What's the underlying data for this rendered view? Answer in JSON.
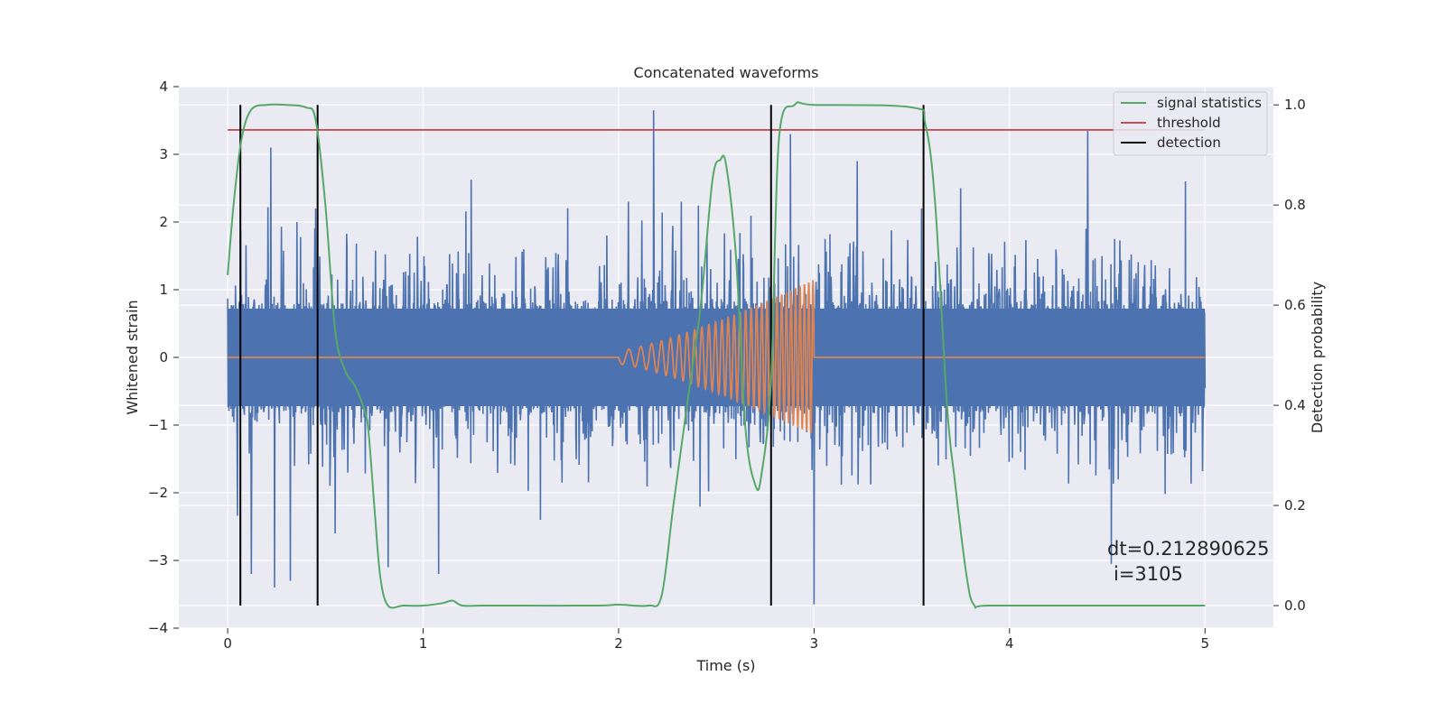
{
  "chart_data": {
    "type": "line",
    "title": "Concatenated waveforms",
    "xlabel": "Time (s)",
    "ylabel": "Whitened strain",
    "ylabel_right": "Detection probability",
    "xlim": [
      -0.25,
      5.35
    ],
    "ylim": [
      -4,
      4
    ],
    "ylim_right": [
      -0.045,
      1.0364
    ],
    "x_ticks": [
      "0",
      "1",
      "2",
      "3",
      "4",
      "5"
    ],
    "y_ticks": [
      "4",
      "3",
      "2",
      "1",
      "0",
      "−1",
      "−2",
      "−3",
      "−4"
    ],
    "y_ticks_right": [
      "1.0",
      "0.8",
      "0.6",
      "0.4",
      "0.2",
      "0.0"
    ],
    "grid": true,
    "legend_position": "top-right",
    "legend": [
      {
        "label": "signal statistics",
        "color": "#55a868"
      },
      {
        "label": "threshold",
        "color": "#c44e52"
      },
      {
        "label": "detection",
        "color": "#000000"
      }
    ],
    "annotation": {
      "line1": "dt=0.212890625",
      "line2": "i=3105"
    },
    "colors": {
      "strain": "#4c72b0",
      "injection": "#dd8452",
      "statistics": "#55a868",
      "threshold": "#c44e52",
      "detection": "#000000",
      "axes_background": "#eaeaf2",
      "grid": "#ffffff"
    },
    "series": [
      {
        "key": "strain",
        "axis": "left",
        "x_range": [
          0,
          5
        ],
        "envelope_core": 0.72,
        "peaks": [
          {
            "x": 0.12,
            "y": -3.2
          },
          {
            "x": 0.22,
            "y": 3.1
          },
          {
            "x": 0.24,
            "y": -3.4
          },
          {
            "x": 0.32,
            "y": -3.3
          },
          {
            "x": 0.45,
            "y": 2.2
          },
          {
            "x": 0.55,
            "y": -2.6
          },
          {
            "x": 0.82,
            "y": -3.1
          },
          {
            "x": 1.08,
            "y": -3.2
          },
          {
            "x": 1.6,
            "y": -2.4
          },
          {
            "x": 2.05,
            "y": 2.3
          },
          {
            "x": 2.18,
            "y": 3.65
          },
          {
            "x": 2.32,
            "y": 2.3
          },
          {
            "x": 2.88,
            "y": 3.3
          },
          {
            "x": 3.0,
            "y": -3.65
          },
          {
            "x": 3.22,
            "y": 2.9
          },
          {
            "x": 3.55,
            "y": 2.2
          },
          {
            "x": 3.75,
            "y": 2.5
          },
          {
            "x": 4.4,
            "y": 3.35
          },
          {
            "x": 4.52,
            "y": -3.05
          },
          {
            "x": 4.9,
            "y": 2.6
          }
        ]
      },
      {
        "key": "injection",
        "axis": "left",
        "x": [
          0,
          2.0,
          3.0,
          5.0
        ],
        "baseline": 0,
        "chirp": {
          "start": 2.0,
          "end": 3.0,
          "amplitude_start": 0.1,
          "amplitude_end": 1.15,
          "cycles": 30
        }
      },
      {
        "key": "statistics",
        "name": "signal statistics",
        "axis": "right",
        "x": [
          0.0,
          0.03,
          0.07,
          0.12,
          0.2,
          0.3,
          0.4,
          0.45,
          0.5,
          0.55,
          0.6,
          0.65,
          0.7,
          0.72,
          0.75,
          0.78,
          0.82,
          0.9,
          1.0,
          1.1,
          1.15,
          1.2,
          1.3,
          1.5,
          1.9,
          2.0,
          2.15,
          2.22,
          2.28,
          2.35,
          2.42,
          2.48,
          2.52,
          2.55,
          2.6,
          2.65,
          2.7,
          2.73,
          2.78,
          2.82,
          2.9,
          3.0,
          3.5,
          3.57,
          3.62,
          3.68,
          3.72,
          3.78,
          3.82,
          3.9,
          4.5,
          5.0
        ],
        "y": [
          0.66,
          0.8,
          0.93,
          0.99,
          1.0,
          1.0,
          0.995,
          0.97,
          0.8,
          0.55,
          0.47,
          0.44,
          0.39,
          0.35,
          0.2,
          0.06,
          0.0,
          0.0,
          0.0,
          0.005,
          0.01,
          0.0,
          0.0,
          0.0,
          0.0,
          0.002,
          0.0,
          0.02,
          0.2,
          0.4,
          0.6,
          0.85,
          0.89,
          0.88,
          0.7,
          0.35,
          0.24,
          0.26,
          0.45,
          0.93,
          1.0,
          1.0,
          0.995,
          0.96,
          0.8,
          0.4,
          0.25,
          0.06,
          0.0,
          0.0,
          0.0,
          0.0
        ]
      },
      {
        "key": "threshold",
        "name": "threshold",
        "axis": "right",
        "x": [
          0,
          5
        ],
        "y": [
          0.95,
          0.95
        ]
      },
      {
        "key": "detection",
        "name": "detection",
        "axis": "right",
        "x": [
          0.065,
          0.46,
          2.78,
          3.56
        ],
        "y_range": [
          0.0,
          1.0
        ]
      }
    ]
  }
}
